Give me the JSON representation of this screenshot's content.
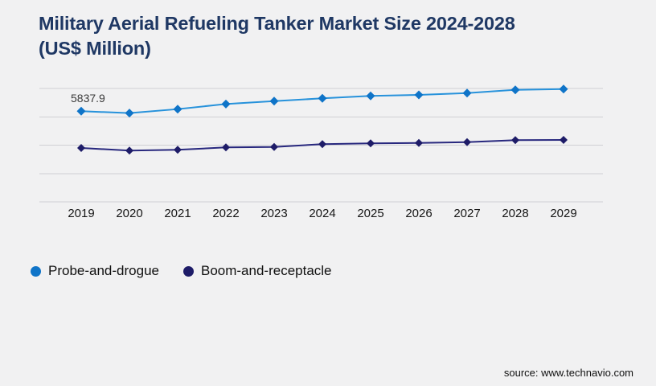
{
  "header": {
    "title": "Military Aerial Refueling Tanker Market Size 2024-2028\n(US$ Million)"
  },
  "legend": {
    "items": [
      {
        "label": "Probe-and-drogue",
        "color": "#0f74c8"
      },
      {
        "label": "Boom-and-receptacle",
        "color": "#1e1c68"
      }
    ]
  },
  "footer": {
    "source": "source: www.technavio.com"
  },
  "colors": {
    "background": "#f1f1f2",
    "title_text": "#1f3864",
    "gridline": "#d0d0d4",
    "axis_label_text": "#161616",
    "data_label_text": "#3b3b3b",
    "probe_line": "#2792db",
    "probe_marker": "#0f74c8",
    "boom_line": "#28287e",
    "boom_marker": "#1e1c68"
  },
  "chart_data": {
    "type": "line",
    "title": "Military Aerial Refueling Tanker Market Size 2024-2028 (US$ Million)",
    "categories": [
      "2019",
      "2020",
      "2021",
      "2022",
      "2023",
      "2024",
      "2025",
      "2026",
      "2027",
      "2028",
      "2029"
    ],
    "series": [
      {
        "name": "Probe-and-drogue",
        "line_color": "#2792db",
        "marker_color": "#0f74c8",
        "marker": "diamond",
        "values": [
          5837.9,
          5712,
          5970,
          6300,
          6487,
          6663,
          6819,
          6885,
          7004,
          7212,
          7264
        ]
      },
      {
        "name": "Boom-and-receptacle",
        "line_color": "#28287e",
        "marker_color": "#1e1c68",
        "marker": "diamond",
        "values": [
          3469,
          3298,
          3350,
          3505,
          3536,
          3712,
          3764,
          3795,
          3847,
          3971,
          3986
        ]
      }
    ],
    "data_labels": {
      "first_point_only": true,
      "text": "5837.9"
    },
    "y_axis": {
      "visible": false,
      "implied_range": [
        0,
        7300
      ]
    },
    "x_axis": {
      "visible": true
    },
    "grid": "horizontal",
    "legend_position": "bottom-left",
    "values_estimated_from_pixels": true
  }
}
